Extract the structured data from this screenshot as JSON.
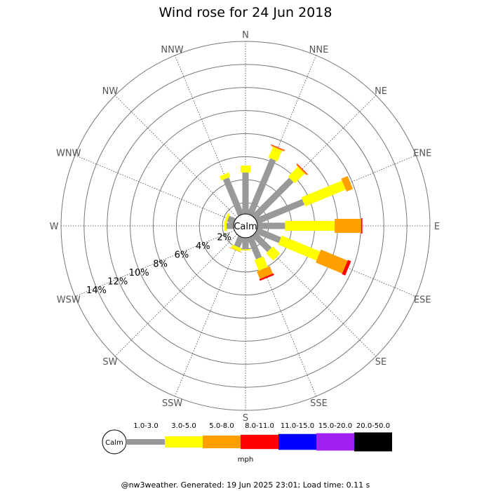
{
  "chart_data": {
    "type": "wind-rose",
    "title": "Wind rose for 24 Jun 2018",
    "calm_label": "Calm",
    "directions": [
      "N",
      "NNE",
      "NE",
      "ENE",
      "E",
      "ESE",
      "SE",
      "SSE",
      "S",
      "SSW",
      "SW",
      "WSW",
      "W",
      "WNW",
      "NW",
      "NNW"
    ],
    "ring_labels": [
      "2%",
      "4%",
      "6%",
      "8%",
      "10%",
      "12%",
      "14%"
    ],
    "rmax_percent": 16,
    "grid": true,
    "speed_bins": [
      {
        "label": "1.0-3.0",
        "color": "#999999"
      },
      {
        "label": "3.0-5.0",
        "color": "#ffff00"
      },
      {
        "label": "5.0-8.0",
        "color": "#ffa000"
      },
      {
        "label": "8.0-11.0",
        "color": "#ff0000"
      },
      {
        "label": "11.0-15.0",
        "color": "#0000ff"
      },
      {
        "label": "15.0-20.0",
        "color": "#a020f0"
      },
      {
        "label": "20.0-50.0",
        "color": "#000000"
      }
    ],
    "units": "mph",
    "series": [
      {
        "direction": "N",
        "values": [
          3.6,
          0.6,
          0,
          0,
          0,
          0,
          0
        ]
      },
      {
        "direction": "NNE",
        "values": [
          5.2,
          1.0,
          0.1,
          0.05,
          0,
          0,
          0
        ]
      },
      {
        "direction": "NE",
        "values": [
          4.6,
          1.2,
          0.1,
          0.05,
          0,
          0,
          0
        ]
      },
      {
        "direction": "ENE",
        "values": [
          4.4,
          3.8,
          0.6,
          0,
          0,
          0,
          0
        ]
      },
      {
        "direction": "E",
        "values": [
          2.4,
          4.3,
          2.3,
          0.1,
          0,
          0,
          0
        ]
      },
      {
        "direction": "ESE",
        "values": [
          2.2,
          3.6,
          2.5,
          0.3,
          0,
          0,
          0
        ]
      },
      {
        "direction": "SE",
        "values": [
          1.9,
          0.9,
          0,
          0,
          0,
          0,
          0
        ]
      },
      {
        "direction": "SSE",
        "values": [
          2.0,
          1.0,
          0.7,
          0.15,
          0,
          0,
          0
        ]
      },
      {
        "direction": "S",
        "values": [
          1.0,
          0.1,
          0,
          0,
          0,
          0,
          0
        ]
      },
      {
        "direction": "SSW",
        "values": [
          0.9,
          0.3,
          0.05,
          0,
          0,
          0,
          0
        ]
      },
      {
        "direction": "SW",
        "values": [
          0,
          0,
          0,
          0,
          0,
          0,
          0
        ]
      },
      {
        "direction": "WSW",
        "values": [
          0,
          0,
          0,
          0,
          0,
          0,
          0
        ]
      },
      {
        "direction": "W",
        "values": [
          0.6,
          0.2,
          0,
          0,
          0,
          0,
          0
        ]
      },
      {
        "direction": "WNW",
        "values": [
          0.6,
          0.2,
          0,
          0,
          0,
          0,
          0
        ]
      },
      {
        "direction": "NW",
        "values": [
          0,
          0,
          0,
          0,
          0,
          0,
          0
        ]
      },
      {
        "direction": "NNW",
        "values": [
          3.4,
          0.4,
          0,
          0,
          0,
          0,
          0
        ]
      }
    ]
  },
  "footer": "@nw3weather. Generated: 19 Jun 2025 23:01; Load time: 0.11 s"
}
